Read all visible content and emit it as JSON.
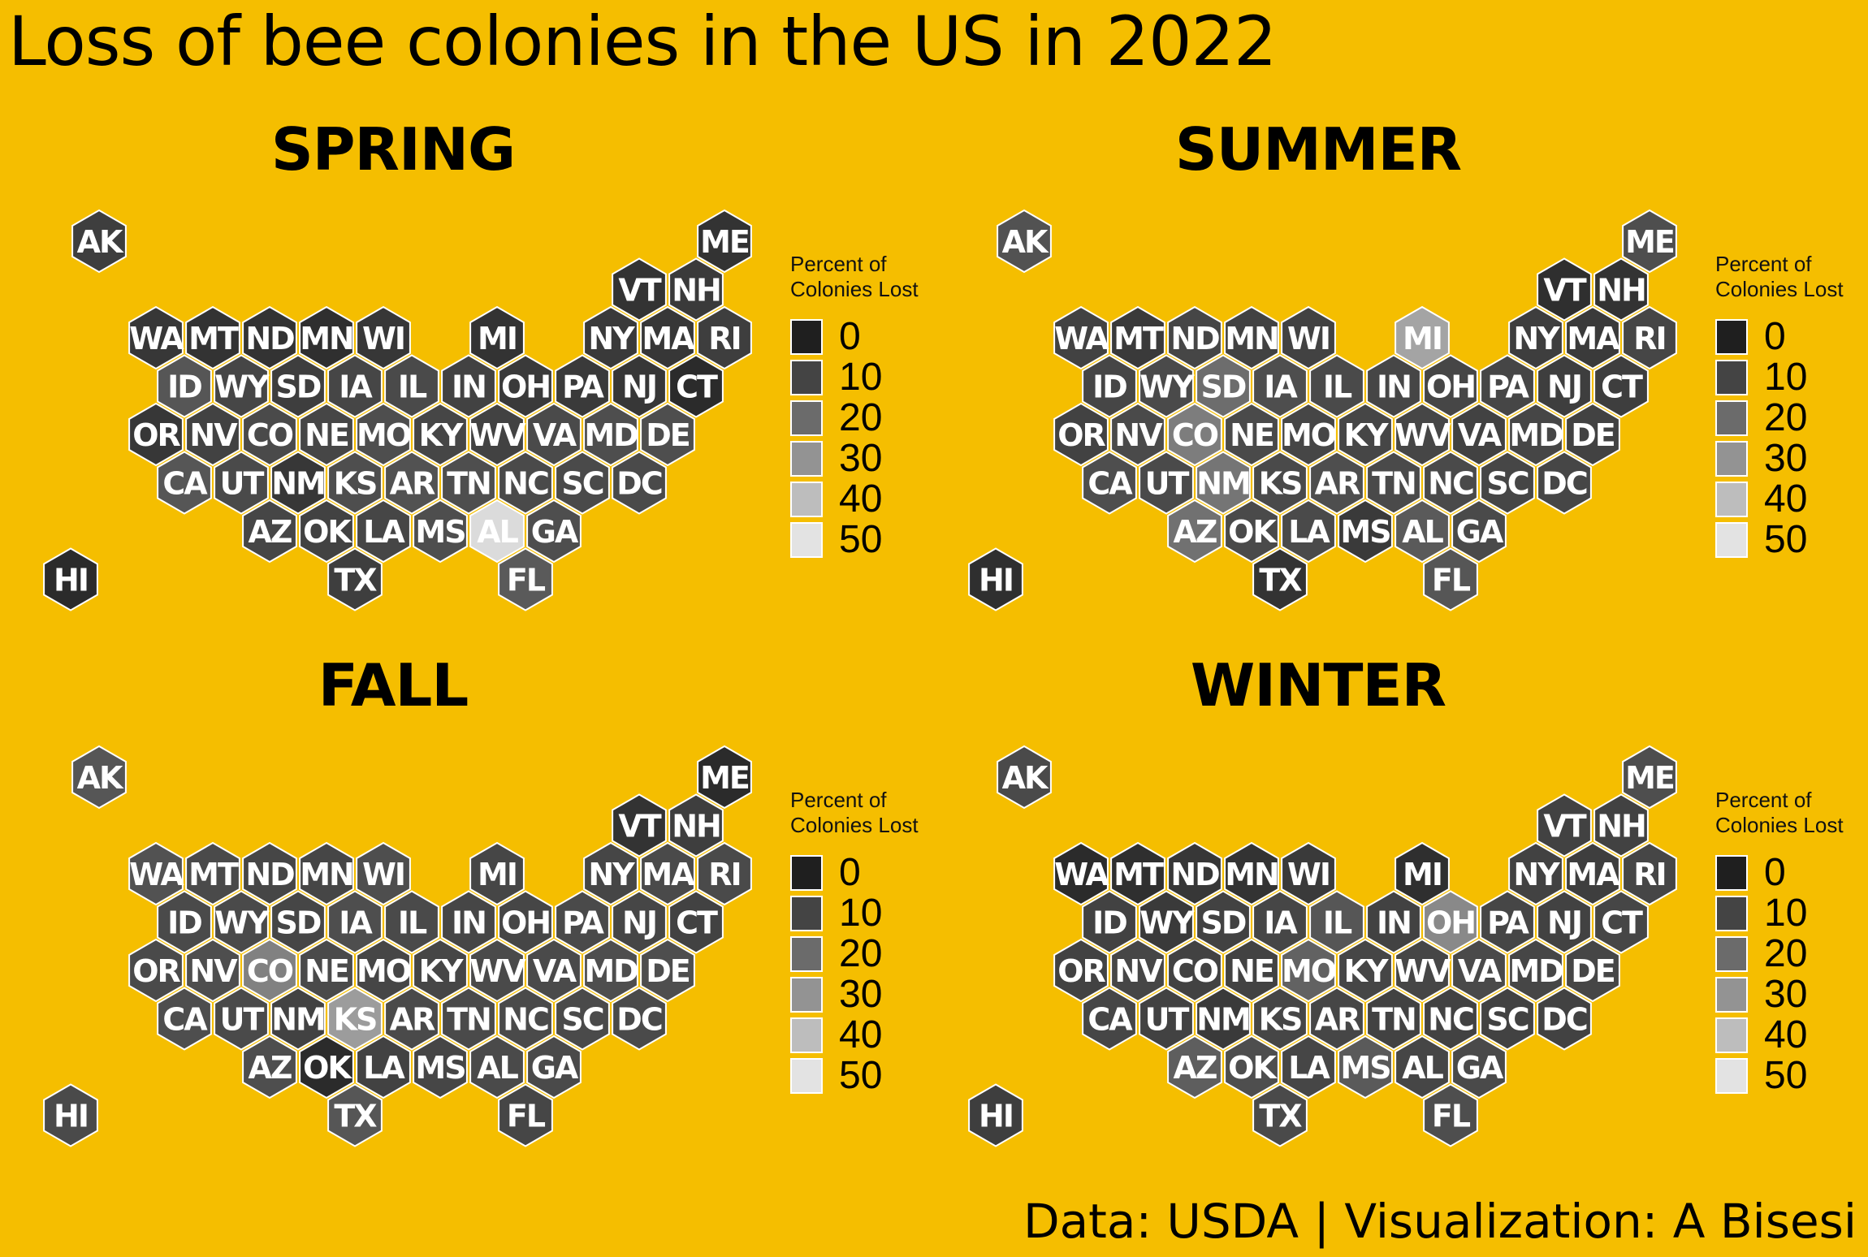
{
  "title": "Loss of bee colonies in the US in 2022",
  "caption": "Data: USDA | Visualization: A Bisesi",
  "legend": {
    "title_line1": "Percent of",
    "title_line2": "Colonies Lost",
    "items": [
      {
        "label": "0",
        "color": "#1F1F1F"
      },
      {
        "label": "10",
        "color": "#444444"
      },
      {
        "label": "20",
        "color": "#6B6B6B"
      },
      {
        "label": "30",
        "color": "#939393"
      },
      {
        "label": "40",
        "color": "#BDBDBD"
      },
      {
        "label": "50",
        "color": "#E3E3E3"
      }
    ]
  },
  "colors": {
    "background": "#F5BE00",
    "hex_border": "#FFFFFF",
    "scale_low": "#1F1F1F",
    "scale_high": "#E3E3E3"
  },
  "chart_data": {
    "type": "hexbin-map",
    "scale": {
      "min": 0,
      "max": 50,
      "breaks": [
        0,
        10,
        20,
        30,
        40,
        50
      ]
    },
    "states": [
      {
        "abbr": "AK",
        "col": 0,
        "row": 0
      },
      {
        "abbr": "ME",
        "col": 11,
        "row": 0
      },
      {
        "abbr": "VT",
        "col": 9.5,
        "row": 1
      },
      {
        "abbr": "NH",
        "col": 10.5,
        "row": 1
      },
      {
        "abbr": "WA",
        "col": 1,
        "row": 2
      },
      {
        "abbr": "MT",
        "col": 2,
        "row": 2
      },
      {
        "abbr": "ND",
        "col": 3,
        "row": 2
      },
      {
        "abbr": "MN",
        "col": 4,
        "row": 2
      },
      {
        "abbr": "WI",
        "col": 5,
        "row": 2
      },
      {
        "abbr": "MI",
        "col": 7,
        "row": 2
      },
      {
        "abbr": "NY",
        "col": 9,
        "row": 2
      },
      {
        "abbr": "MA",
        "col": 10,
        "row": 2
      },
      {
        "abbr": "RI",
        "col": 11,
        "row": 2
      },
      {
        "abbr": "ID",
        "col": 1.5,
        "row": 3
      },
      {
        "abbr": "WY",
        "col": 2.5,
        "row": 3
      },
      {
        "abbr": "SD",
        "col": 3.5,
        "row": 3
      },
      {
        "abbr": "IA",
        "col": 4.5,
        "row": 3
      },
      {
        "abbr": "IL",
        "col": 5.5,
        "row": 3
      },
      {
        "abbr": "IN",
        "col": 6.5,
        "row": 3
      },
      {
        "abbr": "OH",
        "col": 7.5,
        "row": 3
      },
      {
        "abbr": "PA",
        "col": 8.5,
        "row": 3
      },
      {
        "abbr": "NJ",
        "col": 9.5,
        "row": 3
      },
      {
        "abbr": "CT",
        "col": 10.5,
        "row": 3
      },
      {
        "abbr": "OR",
        "col": 1,
        "row": 4
      },
      {
        "abbr": "NV",
        "col": 2,
        "row": 4
      },
      {
        "abbr": "CO",
        "col": 3,
        "row": 4
      },
      {
        "abbr": "NE",
        "col": 4,
        "row": 4
      },
      {
        "abbr": "MO",
        "col": 5,
        "row": 4
      },
      {
        "abbr": "KY",
        "col": 6,
        "row": 4
      },
      {
        "abbr": "WV",
        "col": 7,
        "row": 4
      },
      {
        "abbr": "VA",
        "col": 8,
        "row": 4
      },
      {
        "abbr": "MD",
        "col": 9,
        "row": 4
      },
      {
        "abbr": "DE",
        "col": 10,
        "row": 4
      },
      {
        "abbr": "CA",
        "col": 1.5,
        "row": 5
      },
      {
        "abbr": "UT",
        "col": 2.5,
        "row": 5
      },
      {
        "abbr": "NM",
        "col": 3.5,
        "row": 5
      },
      {
        "abbr": "KS",
        "col": 4.5,
        "row": 5
      },
      {
        "abbr": "AR",
        "col": 5.5,
        "row": 5
      },
      {
        "abbr": "TN",
        "col": 6.5,
        "row": 5
      },
      {
        "abbr": "NC",
        "col": 7.5,
        "row": 5
      },
      {
        "abbr": "SC",
        "col": 8.5,
        "row": 5
      },
      {
        "abbr": "DC",
        "col": 9.5,
        "row": 5
      },
      {
        "abbr": "AZ",
        "col": 3,
        "row": 6
      },
      {
        "abbr": "OK",
        "col": 4,
        "row": 6
      },
      {
        "abbr": "LA",
        "col": 5,
        "row": 6
      },
      {
        "abbr": "MS",
        "col": 6,
        "row": 6
      },
      {
        "abbr": "AL",
        "col": 7,
        "row": 6
      },
      {
        "abbr": "GA",
        "col": 8,
        "row": 6
      },
      {
        "abbr": "HI",
        "col": -0.5,
        "row": 7
      },
      {
        "abbr": "TX",
        "col": 4.5,
        "row": 7
      },
      {
        "abbr": "FL",
        "col": 7.5,
        "row": 7
      }
    ],
    "panels": [
      {
        "title": "SPRING",
        "values": {
          "AK": 8,
          "ME": 5,
          "VT": 5,
          "NH": 7,
          "WA": 6,
          "MT": 5,
          "ND": 5,
          "MN": 4,
          "WI": 6,
          "MI": 5,
          "NY": 7,
          "MA": 6,
          "RI": 8,
          "ID": 14,
          "WY": 10,
          "SD": 8,
          "IA": 10,
          "IL": 11,
          "IN": 9,
          "OH": 7,
          "PA": 7,
          "NJ": 6,
          "CT": 3,
          "OR": 6,
          "NV": 9,
          "CO": 11,
          "NE": 10,
          "MO": 12,
          "KY": 10,
          "WV": 9,
          "VA": 11,
          "MD": 12,
          "DE": 12,
          "CA": 14,
          "UT": 11,
          "NM": 6,
          "KS": 12,
          "AR": 13,
          "TN": 12,
          "NC": 11,
          "SC": 11,
          "DC": 11,
          "AZ": 10,
          "OK": 9,
          "LA": 10,
          "MS": 12,
          "AL": 48,
          "GA": 12,
          "HI": 3,
          "TX": 8,
          "FL": 15
        }
      },
      {
        "title": "SUMMER",
        "values": {
          "AK": 13,
          "ME": 12,
          "VT": 4,
          "NH": 5,
          "WA": 9,
          "MT": 7,
          "ND": 10,
          "MN": 9,
          "WI": 9,
          "MI": 34,
          "NY": 8,
          "MA": 7,
          "RI": 10,
          "ID": 10,
          "WY": 11,
          "SD": 20,
          "IA": 12,
          "IL": 11,
          "IN": 10,
          "OH": 10,
          "PA": 10,
          "NJ": 8,
          "CT": 8,
          "OR": 9,
          "NV": 11,
          "CO": 24,
          "NE": 11,
          "MO": 10,
          "KY": 10,
          "WV": 10,
          "VA": 9,
          "MD": 10,
          "DE": 9,
          "CA": 12,
          "UT": 11,
          "NM": 22,
          "KS": 11,
          "AR": 12,
          "TN": 11,
          "NC": 11,
          "SC": 10,
          "DC": 10,
          "AZ": 21,
          "OK": 11,
          "LA": 11,
          "MS": 7,
          "AL": 15,
          "GA": 11,
          "HI": 4,
          "TX": 5,
          "FL": 14
        }
      },
      {
        "title": "FALL",
        "values": {
          "AK": 14,
          "ME": 3,
          "VT": 5,
          "NH": 8,
          "WA": 13,
          "MT": 11,
          "ND": 10,
          "MN": 10,
          "WI": 12,
          "MI": 10,
          "NY": 10,
          "MA": 11,
          "RI": 11,
          "ID": 11,
          "WY": 11,
          "SD": 10,
          "IA": 12,
          "IL": 11,
          "IN": 10,
          "OH": 10,
          "PA": 11,
          "NJ": 10,
          "CT": 9,
          "OR": 11,
          "NV": 12,
          "CO": 25,
          "NE": 11,
          "MO": 10,
          "KY": 10,
          "WV": 11,
          "VA": 11,
          "MD": 12,
          "DE": 12,
          "CA": 12,
          "UT": 11,
          "NM": 9,
          "KS": 32,
          "AR": 11,
          "TN": 11,
          "NC": 11,
          "SC": 11,
          "DC": 11,
          "AZ": 12,
          "OK": 3,
          "LA": 9,
          "MS": 10,
          "AL": 11,
          "GA": 11,
          "HI": 11,
          "TX": 14,
          "FL": 10
        }
      },
      {
        "title": "WINTER",
        "values": {
          "AK": 11,
          "ME": 12,
          "VT": 9,
          "NH": 9,
          "WA": 3,
          "MT": 4,
          "ND": 6,
          "MN": 5,
          "WI": 7,
          "MI": 4,
          "NY": 9,
          "MA": 8,
          "RI": 10,
          "ID": 9,
          "WY": 7,
          "SD": 9,
          "IA": 10,
          "IL": 14,
          "IN": 9,
          "OH": 27,
          "PA": 10,
          "NJ": 9,
          "CT": 10,
          "OR": 9,
          "NV": 10,
          "CO": 9,
          "NE": 9,
          "MO": 17,
          "KY": 10,
          "WV": 10,
          "VA": 11,
          "MD": 10,
          "DE": 10,
          "CA": 10,
          "UT": 9,
          "NM": 7,
          "KS": 10,
          "AR": 10,
          "TN": 9,
          "NC": 9,
          "SC": 9,
          "DC": 9,
          "AZ": 16,
          "OK": 12,
          "LA": 10,
          "MS": 15,
          "AL": 10,
          "GA": 11,
          "HI": 8,
          "TX": 11,
          "FL": 12
        }
      }
    ]
  }
}
